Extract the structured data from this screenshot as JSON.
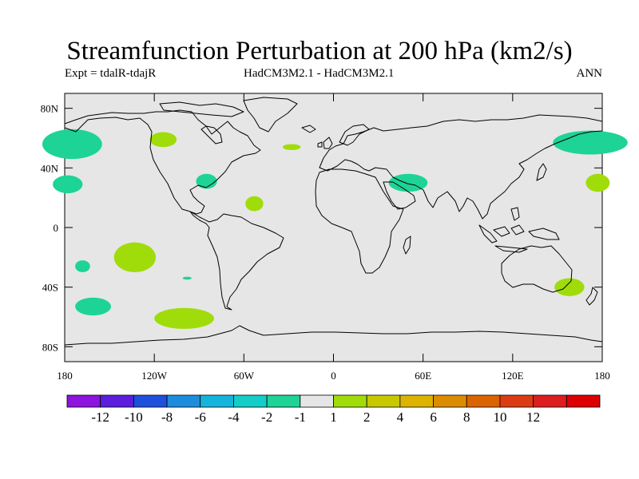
{
  "title": "Streamfunction Perturbation at 200 hPa (km2/s)",
  "subtitle_left": "Expt = tdalR-tdajR",
  "subtitle_center": "HadCM3M2.1 - HadCM3M2.1",
  "subtitle_right": "ANN",
  "map": {
    "background_color": "#e6e6e6",
    "lon_range": [
      -180,
      180
    ],
    "lat_range": [
      -90,
      90
    ],
    "y_ticks": [
      {
        "lat": 80,
        "label": "80N"
      },
      {
        "lat": 40,
        "label": "40N"
      },
      {
        "lat": 0,
        "label": "0"
      },
      {
        "lat": -40,
        "label": "40S"
      },
      {
        "lat": -80,
        "label": "80S"
      }
    ],
    "x_ticks": [
      {
        "lon": -180,
        "label": "180"
      },
      {
        "lon": -120,
        "label": "120W"
      },
      {
        "lon": -60,
        "label": "60W"
      },
      {
        "lon": 0,
        "label": "0"
      },
      {
        "lon": 60,
        "label": "60E"
      },
      {
        "lon": 120,
        "label": "120E"
      },
      {
        "lon": 180,
        "label": "180"
      }
    ],
    "anomalies": [
      {
        "lon": -175,
        "lat": 56,
        "rlon": 20,
        "rlat": 10,
        "color": "#1ed396"
      },
      {
        "lon": -178,
        "lat": 29,
        "rlon": 10,
        "rlat": 6,
        "color": "#1ed396"
      },
      {
        "lon": -114,
        "lat": 59,
        "rlon": 9,
        "rlat": 5,
        "color": "#a0dc0a"
      },
      {
        "lon": -85,
        "lat": 31,
        "rlon": 7,
        "rlat": 5,
        "color": "#1ed396"
      },
      {
        "lon": -53,
        "lat": 16,
        "rlon": 6,
        "rlat": 5,
        "color": "#a0dc0a"
      },
      {
        "lon": -28,
        "lat": 54,
        "rlon": 6,
        "rlat": 2,
        "color": "#a0dc0a"
      },
      {
        "lon": 50,
        "lat": 30,
        "rlon": 13,
        "rlat": 6,
        "color": "#1ed396"
      },
      {
        "lon": 172,
        "lat": 57,
        "rlon": 25,
        "rlat": 8,
        "color": "#1ed396"
      },
      {
        "lon": 177,
        "lat": 30,
        "rlon": 8,
        "rlat": 6,
        "color": "#a0dc0a"
      },
      {
        "lon": -133,
        "lat": -20,
        "rlon": 14,
        "rlat": 10,
        "color": "#a0dc0a"
      },
      {
        "lon": -168,
        "lat": -26,
        "rlon": 5,
        "rlat": 4,
        "color": "#1ed396"
      },
      {
        "lon": -98,
        "lat": -34,
        "rlon": 3,
        "rlat": 1,
        "color": "#1ed396"
      },
      {
        "lon": -161,
        "lat": -53,
        "rlon": 12,
        "rlat": 6,
        "color": "#1ed396"
      },
      {
        "lon": -100,
        "lat": -61,
        "rlon": 20,
        "rlat": 7,
        "color": "#a0dc0a"
      },
      {
        "lon": 158,
        "lat": -40,
        "rlon": 10,
        "rlat": 6,
        "color": "#a0dc0a"
      }
    ]
  },
  "colorbar": {
    "colors": [
      "#8c14dc",
      "#5a1edc",
      "#1e50dc",
      "#1e8cdc",
      "#14b4dc",
      "#14cdc8",
      "#1ed396",
      "#e6e6e6",
      "#a0dc0a",
      "#c8c800",
      "#dcb400",
      "#dc8c00",
      "#dc6400",
      "#dc3c14",
      "#dc1e1e",
      "#dc0000"
    ],
    "labels": [
      "-12",
      "-10",
      "-8",
      "-6",
      "-4",
      "-2",
      "-1",
      "1",
      "2",
      "4",
      "6",
      "8",
      "10",
      "12"
    ]
  }
}
